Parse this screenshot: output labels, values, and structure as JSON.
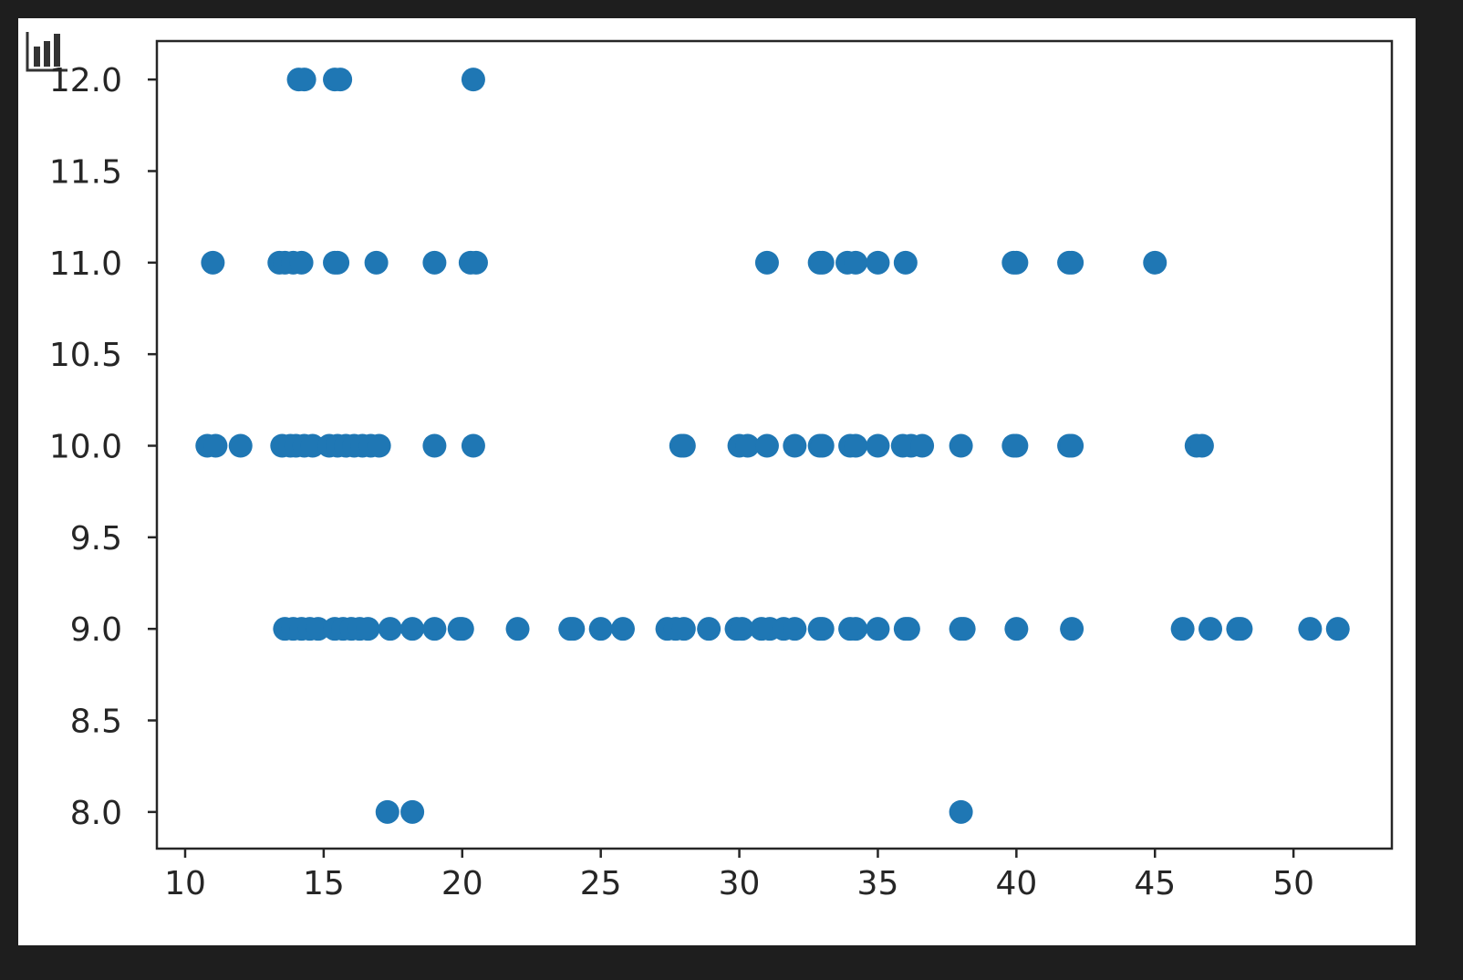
{
  "chart_data": {
    "type": "scatter",
    "title": "",
    "xlabel": "",
    "ylabel": "",
    "xlim": [
      8.98,
      53.55
    ],
    "ylim": [
      7.8,
      12.21
    ],
    "xticks": [
      10,
      15,
      20,
      25,
      30,
      35,
      40,
      45,
      50
    ],
    "yticks": [
      8.0,
      8.5,
      9.0,
      9.5,
      10.0,
      10.5,
      11.0,
      11.5,
      12.0
    ],
    "xtick_labels": [
      "10",
      "15",
      "20",
      "25",
      "30",
      "35",
      "40",
      "45",
      "50"
    ],
    "ytick_labels": [
      "8.0",
      "8.5",
      "9.0",
      "9.5",
      "10.0",
      "10.5",
      "11.0",
      "11.5",
      "12.0"
    ],
    "grid": false,
    "marker_color": "#1f77b4",
    "points": [
      [
        14.1,
        12
      ],
      [
        14.3,
        12
      ],
      [
        15.4,
        12
      ],
      [
        15.6,
        12
      ],
      [
        20.4,
        12
      ],
      [
        11,
        11
      ],
      [
        13.4,
        11
      ],
      [
        13.6,
        11
      ],
      [
        13.9,
        11
      ],
      [
        14.2,
        11
      ],
      [
        15.4,
        11
      ],
      [
        15.5,
        11
      ],
      [
        16.9,
        11
      ],
      [
        19,
        11
      ],
      [
        20.3,
        11
      ],
      [
        20.5,
        11
      ],
      [
        31,
        11
      ],
      [
        32.9,
        11
      ],
      [
        33,
        11
      ],
      [
        33.9,
        11
      ],
      [
        34.2,
        11
      ],
      [
        35,
        11
      ],
      [
        36,
        11
      ],
      [
        39.9,
        11
      ],
      [
        40,
        11
      ],
      [
        41.9,
        11
      ],
      [
        42,
        11
      ],
      [
        45,
        11
      ],
      [
        10.8,
        10
      ],
      [
        11.1,
        10
      ],
      [
        12,
        10
      ],
      [
        13.5,
        10
      ],
      [
        13.8,
        10
      ],
      [
        14,
        10
      ],
      [
        14.3,
        10
      ],
      [
        14.6,
        10
      ],
      [
        15.2,
        10
      ],
      [
        15.5,
        10
      ],
      [
        15.8,
        10
      ],
      [
        16.1,
        10
      ],
      [
        16.4,
        10
      ],
      [
        16.7,
        10
      ],
      [
        17,
        10
      ],
      [
        19,
        10
      ],
      [
        20.4,
        10
      ],
      [
        27.9,
        10
      ],
      [
        28,
        10
      ],
      [
        30,
        10
      ],
      [
        30.3,
        10
      ],
      [
        31,
        10
      ],
      [
        32,
        10
      ],
      [
        32.9,
        10
      ],
      [
        33,
        10
      ],
      [
        34,
        10
      ],
      [
        34.2,
        10
      ],
      [
        35,
        10
      ],
      [
        35.9,
        10
      ],
      [
        36.2,
        10
      ],
      [
        36.6,
        10
      ],
      [
        38,
        10
      ],
      [
        39.9,
        10
      ],
      [
        40,
        10
      ],
      [
        41.9,
        10
      ],
      [
        42,
        10
      ],
      [
        46.5,
        10
      ],
      [
        46.7,
        10
      ],
      [
        13.6,
        9
      ],
      [
        13.9,
        9
      ],
      [
        14.2,
        9
      ],
      [
        14.5,
        9
      ],
      [
        14.8,
        9
      ],
      [
        15.4,
        9
      ],
      [
        15.7,
        9
      ],
      [
        16,
        9
      ],
      [
        16.3,
        9
      ],
      [
        16.6,
        9
      ],
      [
        17.4,
        9
      ],
      [
        18.2,
        9
      ],
      [
        19,
        9
      ],
      [
        19.9,
        9
      ],
      [
        20,
        9
      ],
      [
        22,
        9
      ],
      [
        23.9,
        9
      ],
      [
        24,
        9
      ],
      [
        25,
        9
      ],
      [
        25.8,
        9
      ],
      [
        27.4,
        9
      ],
      [
        27.7,
        9
      ],
      [
        28,
        9
      ],
      [
        28.9,
        9
      ],
      [
        29.9,
        9
      ],
      [
        30.1,
        9
      ],
      [
        30.8,
        9
      ],
      [
        31.1,
        9
      ],
      [
        31.6,
        9
      ],
      [
        32,
        9
      ],
      [
        32.9,
        9
      ],
      [
        33,
        9
      ],
      [
        34,
        9
      ],
      [
        34.2,
        9
      ],
      [
        35,
        9
      ],
      [
        36,
        9
      ],
      [
        36.1,
        9
      ],
      [
        38,
        9
      ],
      [
        38.1,
        9
      ],
      [
        40,
        9
      ],
      [
        42,
        9
      ],
      [
        46,
        9
      ],
      [
        47,
        9
      ],
      [
        48,
        9
      ],
      [
        48.1,
        9
      ],
      [
        50.6,
        9
      ],
      [
        51.6,
        9
      ],
      [
        17.3,
        8
      ],
      [
        18.2,
        8
      ],
      [
        38,
        8
      ]
    ]
  },
  "toolbar": {
    "icon": "bar-chart-icon"
  }
}
